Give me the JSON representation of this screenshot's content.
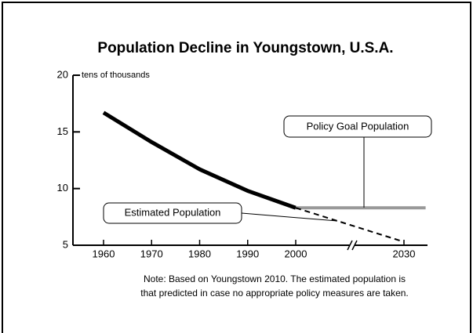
{
  "chart_data": {
    "type": "line",
    "title": "Population Decline in Youngstown, U.S.A.",
    "y_axis_label": "tens of thousands",
    "ylim": [
      5,
      20
    ],
    "yticks": [
      5,
      10,
      15,
      20
    ],
    "xticks": [
      1960,
      1970,
      1980,
      1990,
      2000,
      2030
    ],
    "axis_break": true,
    "series": [
      {
        "x": [
          1960,
          1970,
          1980,
          1990,
          2000
        ],
        "values": [
          16.7,
          14.1,
          11.7,
          9.8,
          8.3
        ],
        "color": "#000000",
        "style": "solid"
      },
      {
        "name": "Policy Goal Population",
        "x": [
          2000,
          2036
        ],
        "values": [
          8.3,
          8.3
        ],
        "color": "#999999",
        "style": "solid"
      },
      {
        "name": "Estimated Population",
        "x": [
          2000,
          2030
        ],
        "values": [
          8.3,
          5.3
        ],
        "color": "#000000",
        "style": "dashed"
      }
    ],
    "notes": [
      "Note: Based on Youngstown 2010. The estimated population is",
      "that predicted in case no appropriate policy measures are taken."
    ]
  }
}
